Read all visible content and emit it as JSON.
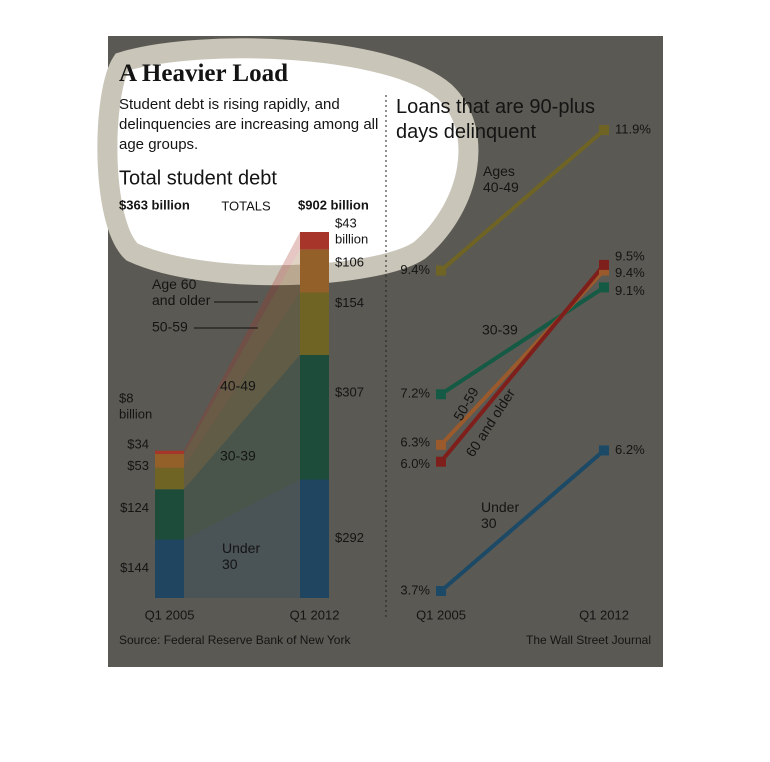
{
  "header": {
    "title": "A Heavier Load",
    "subtitle": "Student debt is rising rapidly, and delinquencies are increasing among all age groups."
  },
  "chart_data": [
    {
      "type": "stacked-bar",
      "title": "Total student debt",
      "categories": [
        "Q1 2005",
        "Q1 2012"
      ],
      "series": [
        {
          "name": "Under 30",
          "color": "#1f4560",
          "values": [
            144,
            292
          ],
          "value_labels": [
            "$144",
            "$292"
          ]
        },
        {
          "name": "30-39",
          "color": "#1d4d3a",
          "values": [
            124,
            307
          ],
          "value_labels": [
            "$124",
            "$307"
          ]
        },
        {
          "name": "40-49",
          "color": "#6f6424",
          "values": [
            53,
            154
          ],
          "value_labels": [
            "$53",
            "$154"
          ]
        },
        {
          "name": "50-59",
          "color": "#93602a",
          "values": [
            34,
            106
          ],
          "value_labels": [
            "$34",
            "$106"
          ]
        },
        {
          "name": "Age 60 and older",
          "color": "#a8352a",
          "values": [
            8,
            43
          ],
          "value_labels": [
            "$8 billion",
            "$43 billion"
          ]
        }
      ],
      "totals": {
        "label": "TOTALS",
        "values": [
          363,
          902
        ],
        "value_labels": [
          "$363 billion",
          "$902 billion"
        ]
      }
    },
    {
      "type": "slope",
      "title": "Loans that are 90-plus days delinquent",
      "categories": [
        "Q1 2005",
        "Q1 2012"
      ],
      "series": [
        {
          "name": "Ages 40-49",
          "color": "#6f6424",
          "values": [
            9.4,
            11.9
          ],
          "value_labels": [
            "9.4%",
            "11.9%"
          ]
        },
        {
          "name": "30-39",
          "color": "#145a44",
          "values": [
            7.2,
            9.1
          ],
          "value_labels": [
            "7.2%",
            "9.1%"
          ]
        },
        {
          "name": "50-59",
          "color": "#9a5a2c",
          "values": [
            6.3,
            9.4
          ],
          "value_labels": [
            "6.3%",
            "9.4%"
          ]
        },
        {
          "name": "60 and older",
          "color": "#7e1f1c",
          "values": [
            6.0,
            9.5
          ],
          "value_labels": [
            "6.0%",
            "9.5%"
          ]
        },
        {
          "name": "Under 30",
          "color": "#1c4a66",
          "values": [
            3.7,
            6.2
          ],
          "value_labels": [
            "3.7%",
            "6.2%"
          ]
        }
      ]
    }
  ],
  "footer": {
    "source": "Source: Federal Reserve Bank of New York",
    "credit": "The Wall Street Journal"
  }
}
